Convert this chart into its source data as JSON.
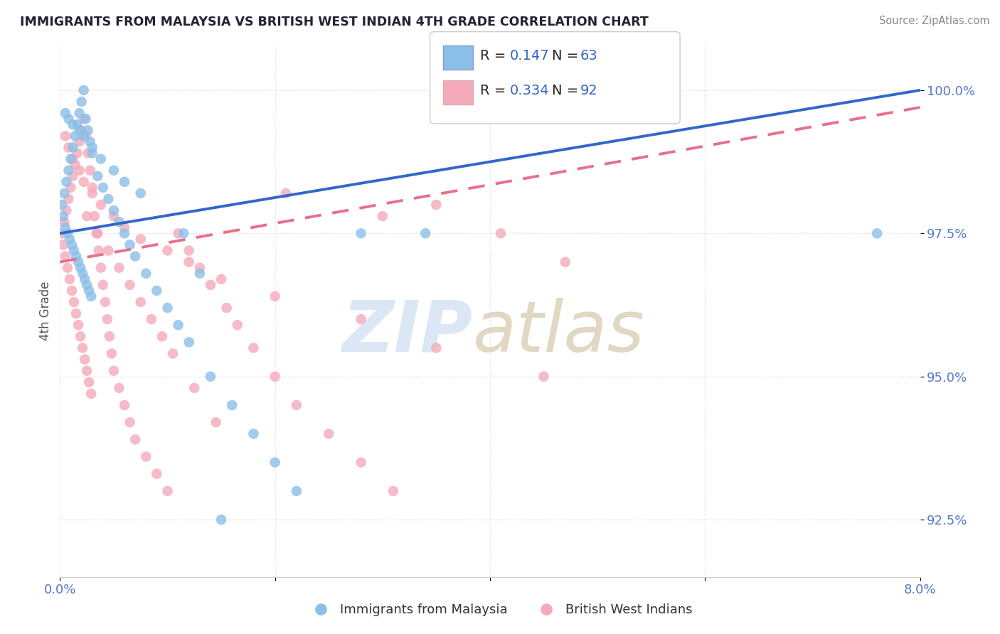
{
  "title": "IMMIGRANTS FROM MALAYSIA VS BRITISH WEST INDIAN 4TH GRADE CORRELATION CHART",
  "source": "Source: ZipAtlas.com",
  "ylabel": "4th Grade",
  "xlim": [
    0.0,
    8.0
  ],
  "ylim": [
    91.5,
    100.8
  ],
  "ytick_labels": [
    "92.5%",
    "95.0%",
    "97.5%",
    "100.0%"
  ],
  "ytick_values": [
    92.5,
    95.0,
    97.5,
    100.0
  ],
  "R_blue": "0.147",
  "N_blue": "63",
  "R_pink": "0.334",
  "N_pink": "92",
  "blue_color": "#8bbfe8",
  "pink_color": "#f5aabb",
  "blue_line_color": "#3366cc",
  "pink_line_color": "#e8708a",
  "legend_R_eq_color": "#222222",
  "legend_val_color": "#3366cc",
  "axis_tick_color": "#5577cc",
  "ylabel_color": "#555555",
  "title_color": "#222233",
  "source_color": "#888888",
  "background_color": "#ffffff",
  "grid_color": "#dddddd",
  "blue_x": [
    0.02,
    0.03,
    0.04,
    0.05,
    0.06,
    0.07,
    0.08,
    0.09,
    0.1,
    0.11,
    0.12,
    0.13,
    0.14,
    0.15,
    0.16,
    0.17,
    0.18,
    0.19,
    0.2,
    0.21,
    0.22,
    0.23,
    0.24,
    0.25,
    0.26,
    0.27,
    0.28,
    0.29,
    0.3,
    0.35,
    0.4,
    0.45,
    0.5,
    0.55,
    0.6,
    0.65,
    0.7,
    0.8,
    0.9,
    1.0,
    1.1,
    1.2,
    1.4,
    1.6,
    1.8,
    2.0,
    2.2,
    1.15,
    1.3,
    2.8,
    3.4,
    7.6,
    0.05,
    0.08,
    0.12,
    0.18,
    0.22,
    0.3,
    0.38,
    0.5,
    0.6,
    0.75,
    1.5
  ],
  "blue_y": [
    98.0,
    97.8,
    98.2,
    97.6,
    98.4,
    97.5,
    98.6,
    97.4,
    98.8,
    97.3,
    99.0,
    97.2,
    99.2,
    97.1,
    99.4,
    97.0,
    99.6,
    96.9,
    99.8,
    96.8,
    100.0,
    96.7,
    99.5,
    96.6,
    99.3,
    96.5,
    99.1,
    96.4,
    98.9,
    98.5,
    98.3,
    98.1,
    97.9,
    97.7,
    97.5,
    97.3,
    97.1,
    96.8,
    96.5,
    96.2,
    95.9,
    95.6,
    95.0,
    94.5,
    94.0,
    93.5,
    93.0,
    97.5,
    96.8,
    97.5,
    97.5,
    97.5,
    99.6,
    99.5,
    99.4,
    99.3,
    99.2,
    99.0,
    98.8,
    98.6,
    98.4,
    98.2,
    92.5
  ],
  "pink_x": [
    0.02,
    0.03,
    0.04,
    0.05,
    0.06,
    0.07,
    0.08,
    0.09,
    0.1,
    0.11,
    0.12,
    0.13,
    0.14,
    0.15,
    0.16,
    0.17,
    0.18,
    0.19,
    0.2,
    0.21,
    0.22,
    0.23,
    0.24,
    0.25,
    0.26,
    0.27,
    0.28,
    0.29,
    0.3,
    0.32,
    0.34,
    0.36,
    0.38,
    0.4,
    0.42,
    0.44,
    0.46,
    0.48,
    0.5,
    0.55,
    0.6,
    0.65,
    0.7,
    0.8,
    0.9,
    1.0,
    1.1,
    1.2,
    1.3,
    1.4,
    1.55,
    1.65,
    1.8,
    2.0,
    2.2,
    2.5,
    2.8,
    3.1,
    3.5,
    4.1,
    4.7,
    0.05,
    0.08,
    0.12,
    0.18,
    0.22,
    0.3,
    0.38,
    0.5,
    0.6,
    0.75,
    1.0,
    1.2,
    1.5,
    2.0,
    2.8,
    3.5,
    4.5,
    5.6,
    0.25,
    0.35,
    0.45,
    0.55,
    0.65,
    0.75,
    0.85,
    0.95,
    1.05,
    1.25,
    1.45,
    2.1,
    3.0
  ],
  "pink_y": [
    97.5,
    97.3,
    97.7,
    97.1,
    97.9,
    96.9,
    98.1,
    96.7,
    98.3,
    96.5,
    98.5,
    96.3,
    98.7,
    96.1,
    98.9,
    95.9,
    99.1,
    95.7,
    99.3,
    95.5,
    99.5,
    95.3,
    99.2,
    95.1,
    98.9,
    94.9,
    98.6,
    94.7,
    98.3,
    97.8,
    97.5,
    97.2,
    96.9,
    96.6,
    96.3,
    96.0,
    95.7,
    95.4,
    95.1,
    94.8,
    94.5,
    94.2,
    93.9,
    93.6,
    93.3,
    93.0,
    97.5,
    97.2,
    96.9,
    96.6,
    96.2,
    95.9,
    95.5,
    95.0,
    94.5,
    94.0,
    93.5,
    93.0,
    98.0,
    97.5,
    97.0,
    99.2,
    99.0,
    98.8,
    98.6,
    98.4,
    98.2,
    98.0,
    97.8,
    97.6,
    97.4,
    97.2,
    97.0,
    96.7,
    96.4,
    96.0,
    95.5,
    95.0,
    99.5,
    97.8,
    97.5,
    97.2,
    96.9,
    96.6,
    96.3,
    96.0,
    95.7,
    95.4,
    94.8,
    94.2,
    98.2,
    97.8
  ]
}
